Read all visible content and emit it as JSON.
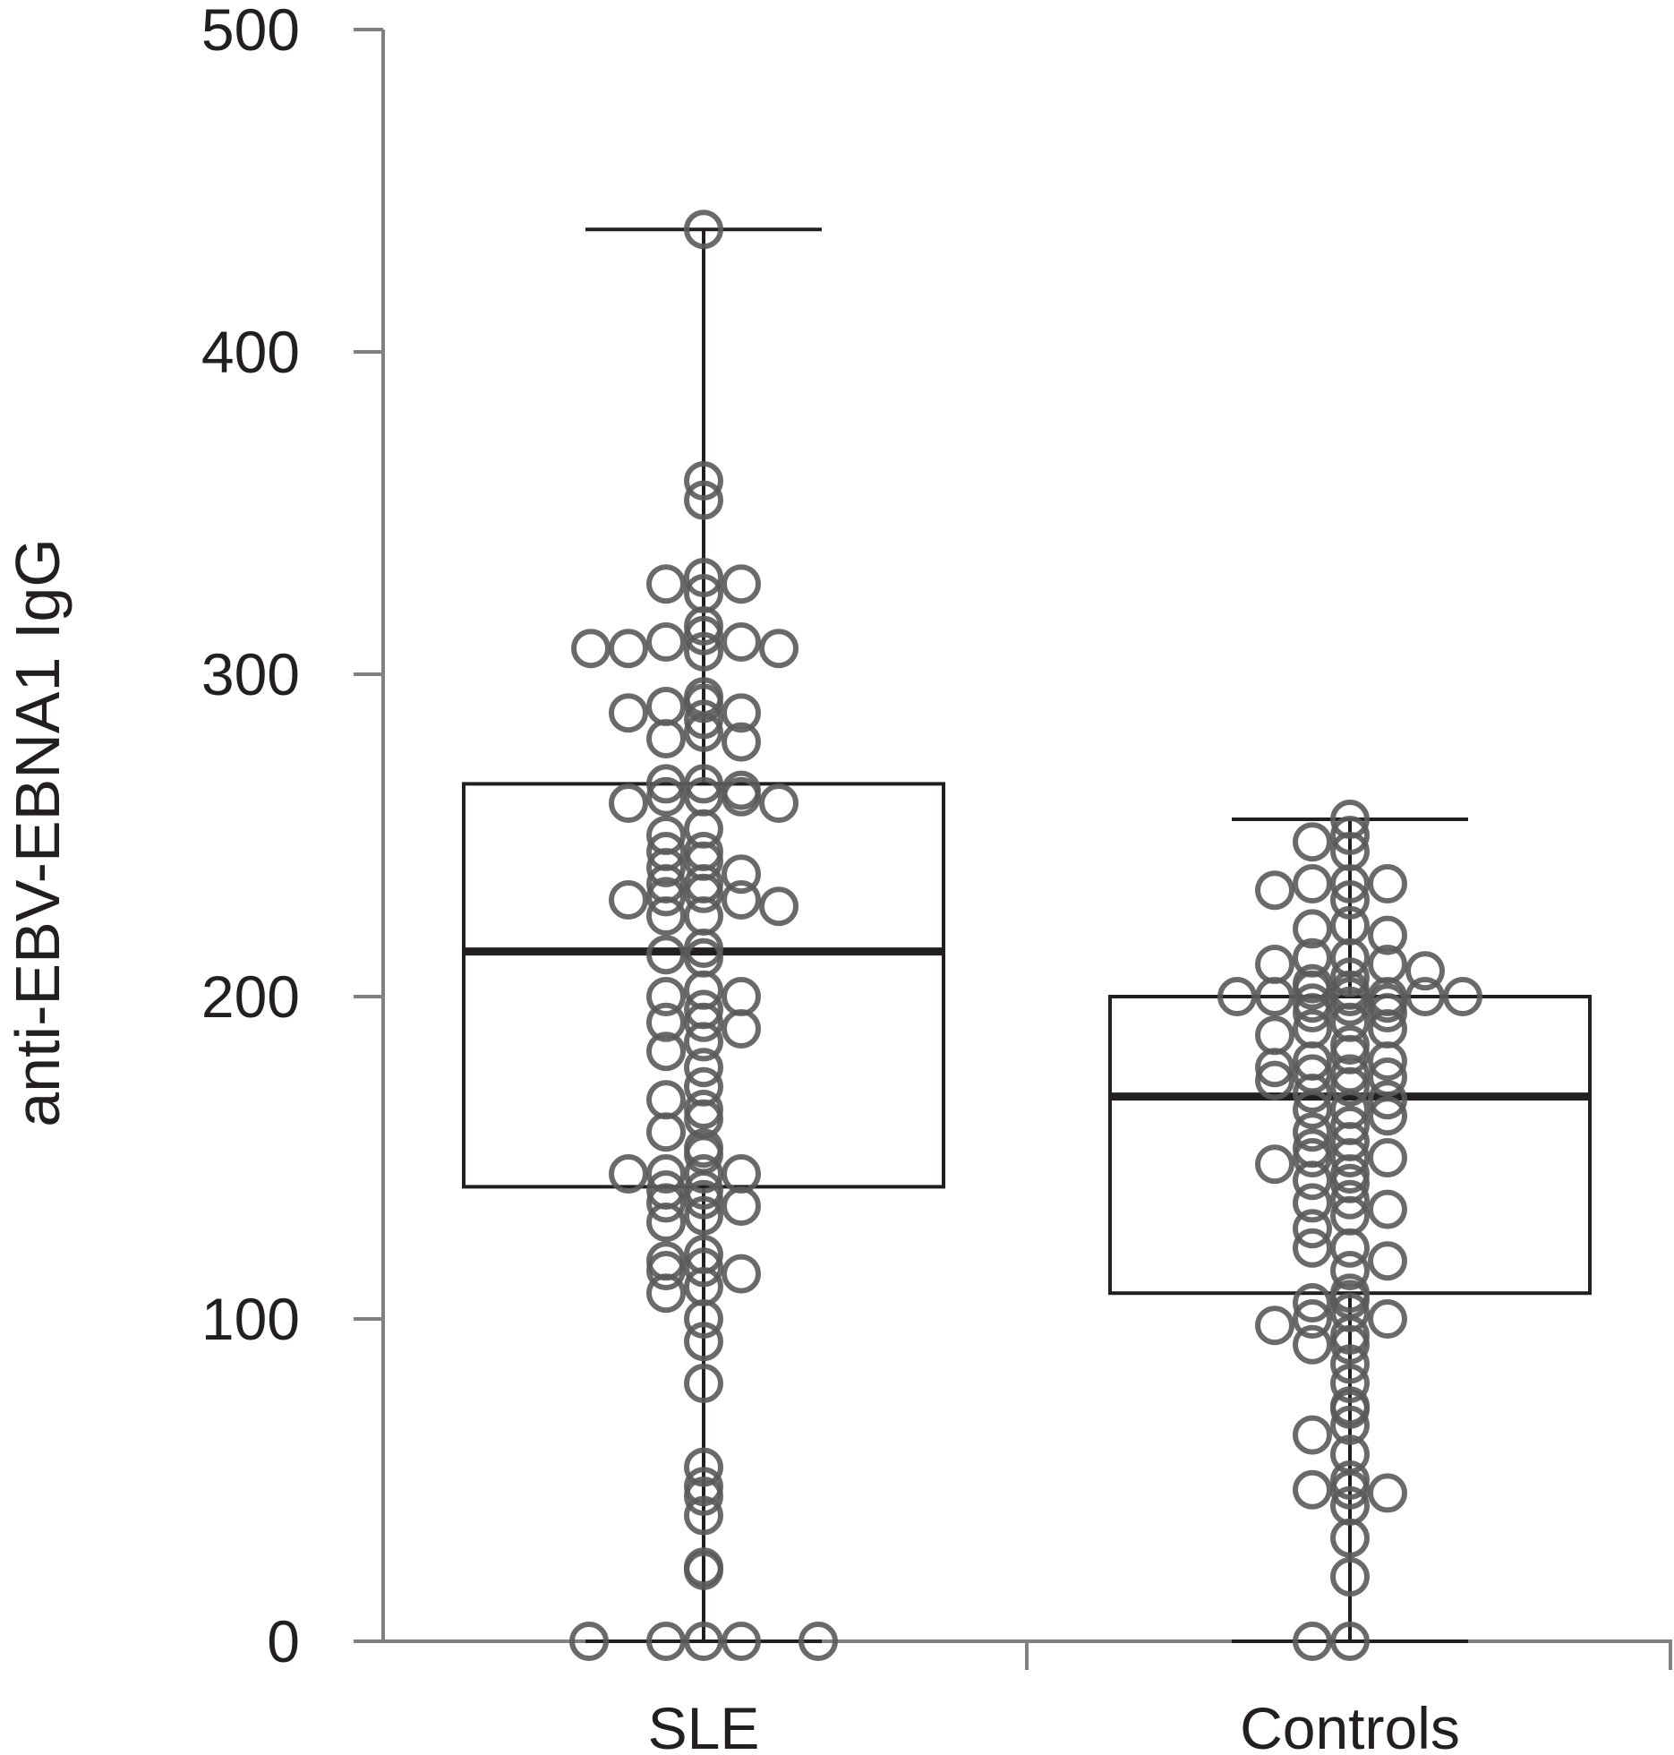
{
  "chart_data": {
    "type": "box",
    "title": "",
    "xlabel": "",
    "ylabel": "anti-EBV-EBNA1 IgG",
    "ylim": [
      0,
      500
    ],
    "yticks": [
      0,
      100,
      200,
      300,
      400,
      500
    ],
    "grid": false,
    "legend": "none",
    "colors": {
      "axis": "#808080",
      "box": "#231f20",
      "points": "#5a5a5a"
    },
    "categories": [
      "SLE",
      "Controls"
    ],
    "boxes": [
      {
        "category": "SLE",
        "whisker_low": 0,
        "q1": 141,
        "median": 214,
        "q3": 266,
        "whisker_high": 438
      },
      {
        "category": "Controls",
        "whisker_low": 0,
        "q1": 108,
        "median": 169,
        "q3": 200,
        "whisker_high": 255
      }
    ],
    "points": [
      {
        "category": "SLE",
        "values": [
          438,
          360,
          354,
          330,
          328,
          328,
          325,
          315,
          312,
          310,
          310,
          308,
          308,
          308,
          307,
          293,
          291,
          290,
          288,
          288,
          286,
          282,
          280,
          279,
          266,
          266,
          264,
          262,
          262,
          262,
          260,
          260,
          252,
          250,
          245,
          245,
          242,
          240,
          238,
          235,
          235,
          232,
          231,
          230,
          230,
          228,
          225,
          225,
          215,
          213,
          212,
          202,
          200,
          200,
          196,
          192,
          192,
          190,
          186,
          183,
          178,
          172,
          168,
          165,
          162,
          158,
          153,
          151,
          145,
          145,
          145,
          145,
          140,
          140,
          137,
          136,
          135,
          132,
          130,
          120,
          118,
          116,
          115,
          114,
          110,
          108,
          100,
          93,
          80,
          54,
          48,
          45,
          39,
          23,
          22,
          0,
          0,
          0,
          0,
          0
        ]
      },
      {
        "category": "Controls",
        "values": [
          255,
          250,
          248,
          245,
          235,
          235,
          235,
          233,
          230,
          222,
          221,
          219,
          212,
          212,
          210,
          210,
          208,
          206,
          204,
          202,
          202,
          200,
          200,
          200,
          200,
          200,
          200,
          198,
          198,
          197,
          195,
          195,
          192,
          190,
          190,
          188,
          185,
          182,
          180,
          180,
          178,
          176,
          176,
          175,
          174,
          172,
          170,
          168,
          165,
          165,
          163,
          160,
          158,
          155,
          153,
          150,
          150,
          150,
          148,
          145,
          143,
          142,
          137,
          136,
          134,
          132,
          128,
          122,
          122,
          118,
          115,
          108,
          106,
          105,
          102,
          100,
          100,
          98,
          95,
          92,
          92,
          86,
          80,
          73,
          72,
          67,
          64,
          58,
          50,
          47,
          47,
          46,
          42,
          32,
          20,
          0,
          0
        ]
      }
    ]
  }
}
